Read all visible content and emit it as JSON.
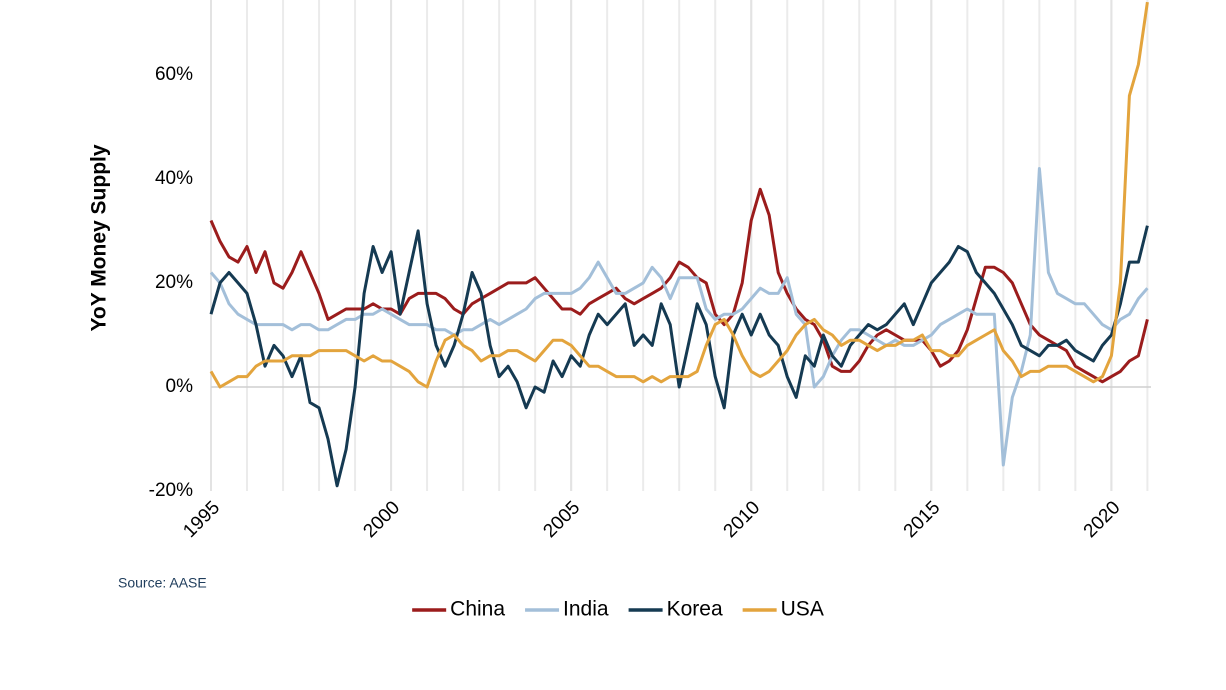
{
  "chart_data": {
    "type": "line",
    "y_label": "YoY Money Supply",
    "source": "Source: AASE",
    "x": [
      1995,
      1995.25,
      1995.5,
      1995.75,
      1996,
      1996.25,
      1996.5,
      1996.75,
      1997,
      1997.25,
      1997.5,
      1997.75,
      1998,
      1998.25,
      1998.5,
      1998.75,
      1999,
      1999.25,
      1999.5,
      1999.75,
      2000,
      2000.25,
      2000.5,
      2000.75,
      2001,
      2001.25,
      2001.5,
      2001.75,
      2002,
      2002.25,
      2002.5,
      2002.75,
      2003,
      2003.25,
      2003.5,
      2003.75,
      2004,
      2004.25,
      2004.5,
      2004.75,
      2005,
      2005.25,
      2005.5,
      2005.75,
      2006,
      2006.25,
      2006.5,
      2006.75,
      2007,
      2007.25,
      2007.5,
      2007.75,
      2008,
      2008.25,
      2008.5,
      2008.75,
      2009,
      2009.25,
      2009.5,
      2009.75,
      2010,
      2010.25,
      2010.5,
      2010.75,
      2011,
      2011.25,
      2011.5,
      2011.75,
      2012,
      2012.25,
      2012.5,
      2012.75,
      2013,
      2013.25,
      2013.5,
      2013.75,
      2014,
      2014.25,
      2014.5,
      2014.75,
      2015,
      2015.25,
      2015.5,
      2015.75,
      2016,
      2016.25,
      2016.5,
      2016.75,
      2017,
      2017.25,
      2017.5,
      2017.75,
      2018,
      2018.25,
      2018.5,
      2018.75,
      2019,
      2019.25,
      2019.5,
      2019.75,
      2020,
      2020.25,
      2020.5,
      2020.75,
      2021
    ],
    "series": [
      {
        "name": "China",
        "color": "#9b1c1c",
        "values": [
          32,
          28,
          25,
          24,
          27,
          22,
          26,
          20,
          19,
          22,
          26,
          22,
          18,
          13,
          14,
          15,
          15,
          15,
          16,
          15,
          15,
          14,
          17,
          18,
          18,
          18,
          17,
          15,
          14,
          16,
          17,
          18,
          19,
          20,
          20,
          20,
          21,
          19,
          17,
          15,
          15,
          14,
          16,
          17,
          18,
          19,
          17,
          16,
          17,
          18,
          19,
          21,
          24,
          23,
          21,
          20,
          14,
          12,
          14,
          20,
          32,
          38,
          33,
          22,
          18,
          15,
          13,
          12,
          9,
          4,
          3,
          3,
          5,
          8,
          10,
          11,
          10,
          9,
          9,
          9,
          7,
          4,
          5,
          7,
          11,
          17,
          23,
          23,
          22,
          20,
          16,
          12,
          10,
          9,
          8,
          7,
          4,
          3,
          2,
          1,
          2,
          3,
          5,
          6,
          13
        ]
      },
      {
        "name": "India",
        "color": "#a3bfd9",
        "values": [
          22,
          20,
          16,
          14,
          13,
          12,
          12,
          12,
          12,
          11,
          12,
          12,
          11,
          11,
          12,
          13,
          13,
          14,
          14,
          15,
          14,
          13,
          12,
          12,
          12,
          11,
          11,
          10,
          11,
          11,
          12,
          13,
          12,
          13,
          14,
          15,
          17,
          18,
          18,
          18,
          18,
          19,
          21,
          24,
          21,
          18,
          18,
          19,
          20,
          23,
          21,
          17,
          21,
          21,
          21,
          15,
          13,
          14,
          14,
          15,
          17,
          19,
          18,
          18,
          21,
          14,
          12,
          0,
          2,
          6,
          9,
          11,
          11,
          10,
          9,
          8,
          9,
          8,
          8,
          9,
          10,
          12,
          13,
          14,
          15,
          14,
          14,
          14,
          -15,
          -2,
          3,
          10,
          42,
          22,
          18,
          17,
          16,
          16,
          14,
          12,
          11,
          13,
          14,
          17,
          19
        ]
      },
      {
        "name": "Korea",
        "color": "#153a52",
        "values": [
          14,
          20,
          22,
          20,
          18,
          12,
          4,
          8,
          6,
          2,
          6,
          -3,
          -4,
          -10,
          -19,
          -12,
          0,
          18,
          27,
          22,
          26,
          14,
          22,
          30,
          16,
          8,
          4,
          8,
          14,
          22,
          18,
          8,
          2,
          4,
          1,
          -4,
          0,
          -1,
          5,
          2,
          6,
          4,
          10,
          14,
          12,
          14,
          16,
          8,
          10,
          8,
          16,
          12,
          0,
          8,
          16,
          12,
          2,
          -4,
          10,
          14,
          10,
          14,
          10,
          8,
          2,
          -2,
          6,
          4,
          10,
          6,
          4,
          8,
          10,
          12,
          11,
          12,
          14,
          16,
          12,
          16,
          20,
          22,
          24,
          27,
          26,
          22,
          20,
          18,
          15,
          12,
          8,
          7,
          6,
          8,
          8,
          9,
          7,
          6,
          5,
          8,
          10,
          16,
          24,
          24,
          31
        ]
      },
      {
        "name": "USA",
        "color": "#e3a43d",
        "values": [
          3,
          0,
          1,
          2,
          2,
          4,
          5,
          5,
          5,
          6,
          6,
          6,
          7,
          7,
          7,
          7,
          6,
          5,
          6,
          5,
          5,
          4,
          3,
          1,
          0,
          5,
          9,
          10,
          8,
          7,
          5,
          6,
          6,
          7,
          7,
          6,
          5,
          7,
          9,
          9,
          8,
          6,
          4,
          4,
          3,
          2,
          2,
          2,
          1,
          2,
          1,
          2,
          2,
          2,
          3,
          8,
          12,
          13,
          10,
          6,
          3,
          2,
          3,
          5,
          7,
          10,
          12,
          13,
          11,
          10,
          8,
          9,
          9,
          8,
          7,
          8,
          8,
          9,
          9,
          10,
          7,
          7,
          6,
          6,
          8,
          9,
          10,
          11,
          7,
          5,
          2,
          3,
          3,
          4,
          4,
          4,
          3,
          2,
          1,
          2,
          6,
          20,
          56,
          62,
          74
        ]
      }
    ],
    "xlim": [
      1995,
      2021.1
    ],
    "xticks": [
      1995,
      2000,
      2005,
      2010,
      2015,
      2020
    ],
    "ylim": [
      -20,
      74.4
    ],
    "yticks": [
      {
        "value": -20,
        "label": "-20%"
      },
      {
        "value": 0,
        "label": "0%"
      },
      {
        "value": 20,
        "label": "20%"
      },
      {
        "value": 40,
        "label": "40%"
      },
      {
        "value": 60,
        "label": "60%"
      }
    ],
    "legend": "bottom"
  }
}
